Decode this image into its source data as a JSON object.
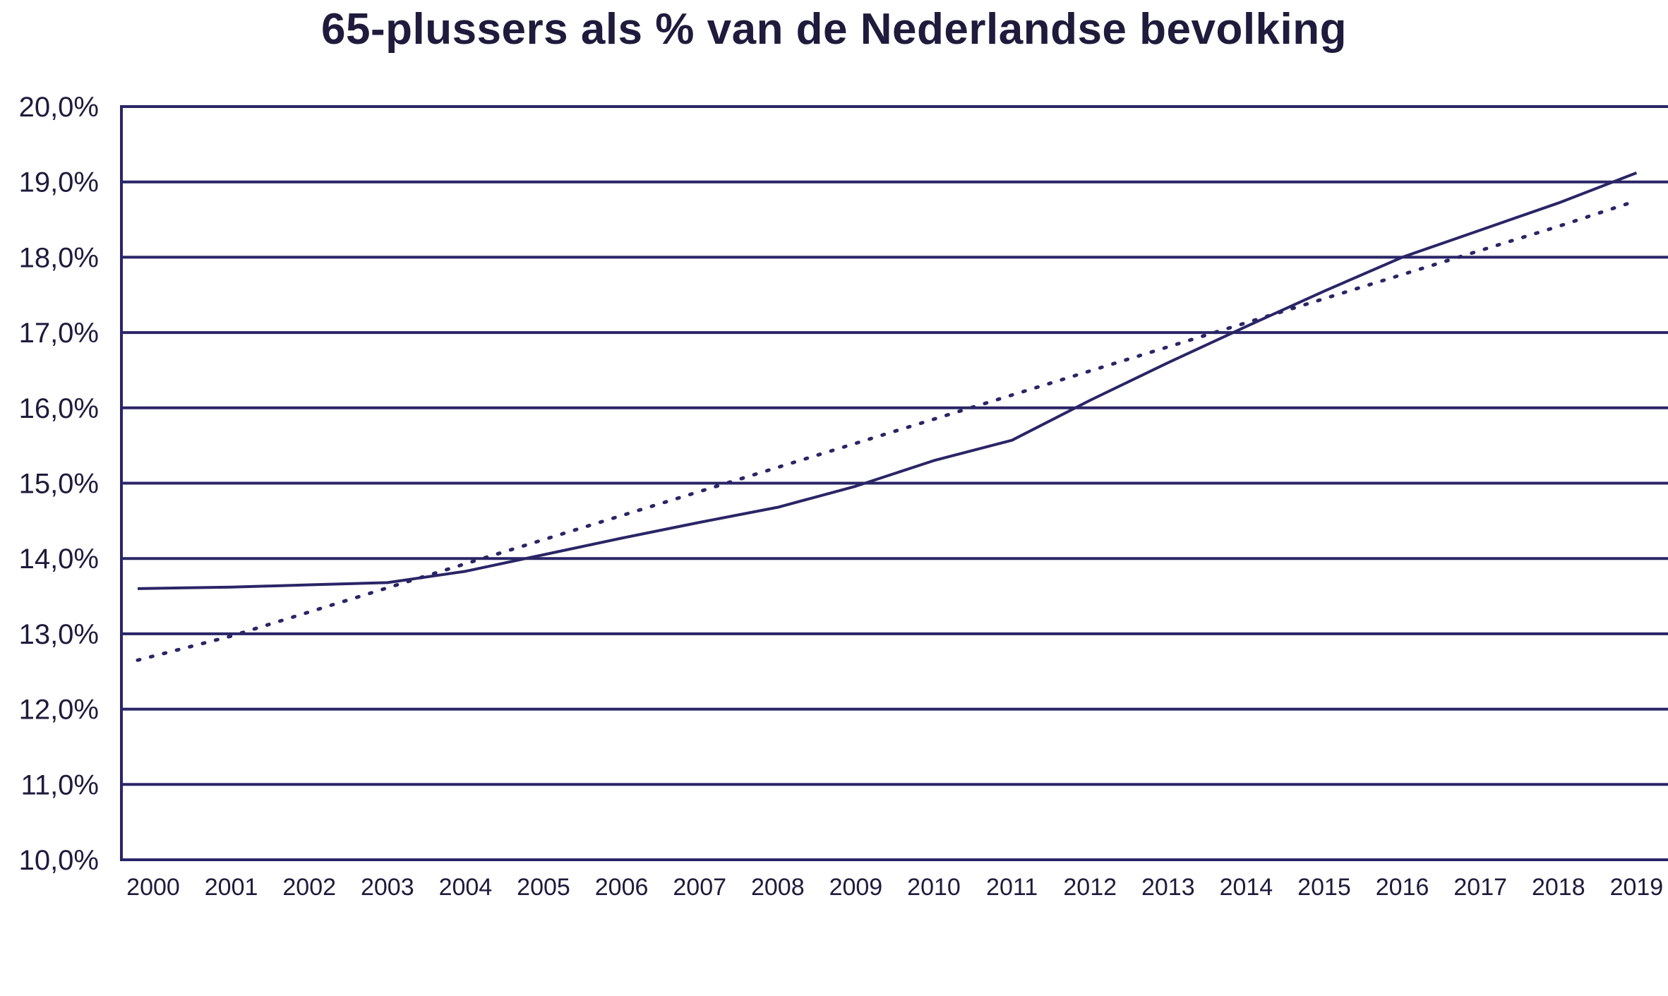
{
  "chart_data": {
    "type": "line",
    "title": "65-plussers als % van de Nederlandse bevolking",
    "xlabel": "",
    "ylabel": "",
    "categories": [
      "2000",
      "2001",
      "2002",
      "2003",
      "2004",
      "2005",
      "2006",
      "2007",
      "2008",
      "2009",
      "2010",
      "2011",
      "2012",
      "2013",
      "2014",
      "2015",
      "2016",
      "2017",
      "2018",
      "2019"
    ],
    "ylim": [
      10.0,
      20.0
    ],
    "yticks": [
      "10,0%",
      "11,0%",
      "12,0%",
      "13,0%",
      "14,0%",
      "15,0%",
      "16,0%",
      "17,0%",
      "18,0%",
      "19,0%",
      "20,0%"
    ],
    "grid": true,
    "series": [
      {
        "style": "solid",
        "values": [
          13.6,
          13.62,
          13.65,
          13.68,
          13.83,
          14.05,
          14.27,
          14.48,
          14.68,
          14.96,
          15.3,
          15.57,
          16.1,
          16.6,
          17.08,
          17.55,
          18.0,
          18.36,
          18.72,
          19.12
        ]
      },
      {
        "style": "dotted",
        "trend": "linear",
        "values": [
          12.65,
          12.97,
          13.29,
          13.61,
          13.93,
          14.25,
          14.57,
          14.89,
          15.21,
          15.53,
          15.85,
          16.17,
          16.49,
          16.81,
          17.13,
          17.45,
          17.77,
          18.09,
          18.41,
          18.75
        ]
      }
    ],
    "colors": {
      "line": "#2a2566",
      "axis": "#2a2566",
      "text": "#1e1b3c"
    }
  }
}
